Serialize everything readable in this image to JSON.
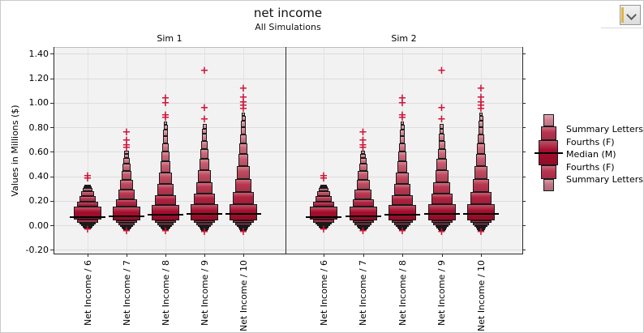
{
  "header": {
    "title": "net income",
    "subtitle": "All Simulations"
  },
  "controls": {
    "menu_button_icon": "chevron-down"
  },
  "chart_data": {
    "type": "letter-value-boxplot",
    "title": "net income",
    "subtitle": "All Simulations",
    "ylabel": "Values in Millions ($)",
    "ylim": [
      -0.2,
      1.4
    ],
    "ytick_step": 0.2,
    "ytick_labels": [
      "-0.20",
      "0.00",
      "0.20",
      "0.40",
      "0.60",
      "0.80",
      "1.00",
      "1.20",
      "1.40"
    ],
    "grid": true,
    "legend_position": "right",
    "legend_items": [
      "Summary Letters",
      "Fourths (F)",
      "Median (M)",
      "Fourths (F)",
      "Summary Letters"
    ],
    "colors": {
      "box_deep": "#a50e2d",
      "box_light": "#dca0ab",
      "outlier": "#d21438",
      "panel_bg": "#f2f2f2"
    },
    "panels": [
      {
        "label": "Sim 1",
        "columns": [
          {
            "label": "Net Income / 6",
            "median": 0.065,
            "fourths": [
              0.046,
              0.152
            ],
            "upper_letter_values": [
              0.19,
              0.24,
              0.28,
              0.303,
              0.318,
              0.33
            ],
            "lower_letter_values": [
              0.02,
              0.004,
              -0.007,
              -0.015,
              -0.021,
              -0.026
            ],
            "outliers_high": [
              0.375,
              0.395
            ],
            "outliers_low": [
              -0.042
            ]
          },
          {
            "label": "Net Income / 7",
            "median": 0.075,
            "fourths": [
              0.04,
              0.15
            ],
            "upper_letter_values": [
              0.21,
              0.29,
              0.37,
              0.44,
              0.5,
              0.55,
              0.585,
              0.61
            ],
            "lower_letter_values": [
              0.018,
              0.002,
              -0.01,
              -0.019,
              -0.027,
              -0.033
            ],
            "outliers_high": [
              0.625,
              0.65,
              0.69,
              0.755
            ],
            "outliers_low": [
              -0.05
            ]
          },
          {
            "label": "Net Income / 8",
            "median": 0.085,
            "fourths": [
              0.042,
              0.165
            ],
            "upper_letter_values": [
              0.245,
              0.335,
              0.43,
              0.52,
              0.6,
              0.67,
              0.73,
              0.78,
              0.818,
              0.845
            ],
            "lower_letter_values": [
              0.018,
              0.001,
              -0.012,
              -0.022,
              -0.031,
              -0.038
            ],
            "outliers_high": [
              0.87,
              0.895,
              0.99,
              1.03
            ],
            "outliers_low": [
              -0.055
            ]
          },
          {
            "label": "Net Income / 9",
            "median": 0.09,
            "fourths": [
              0.042,
              0.17
            ],
            "upper_letter_values": [
              0.255,
              0.35,
              0.45,
              0.54,
              0.62,
              0.69,
              0.745,
              0.79,
              0.825
            ],
            "lower_letter_values": [
              0.018,
              0.0,
              -0.013,
              -0.024,
              -0.034,
              -0.042
            ],
            "outliers_high": [
              0.862,
              0.955,
              1.258
            ],
            "outliers_low": [
              -0.058
            ]
          },
          {
            "label": "Net Income / 10",
            "median": 0.095,
            "fourths": [
              0.042,
              0.175
            ],
            "upper_letter_values": [
              0.27,
              0.375,
              0.48,
              0.58,
              0.665,
              0.74,
              0.8,
              0.85,
              0.89,
              0.92
            ],
            "lower_letter_values": [
              0.018,
              0.0,
              -0.014,
              -0.026,
              -0.036,
              -0.044
            ],
            "outliers_high": [
              0.945,
              0.975,
              1.0,
              1.04,
              1.11
            ],
            "outliers_low": [
              -0.06
            ]
          }
        ]
      },
      {
        "label": "Sim 2",
        "columns": [
          {
            "label": "Net Income / 6",
            "median": 0.065,
            "fourths": [
              0.046,
              0.152
            ],
            "upper_letter_values": [
              0.19,
              0.24,
              0.28,
              0.303,
              0.318,
              0.33
            ],
            "lower_letter_values": [
              0.02,
              0.004,
              -0.007,
              -0.015,
              -0.021,
              -0.026
            ],
            "outliers_high": [
              0.375,
              0.395
            ],
            "outliers_low": [
              -0.042
            ]
          },
          {
            "label": "Net Income / 7",
            "median": 0.075,
            "fourths": [
              0.04,
              0.15
            ],
            "upper_letter_values": [
              0.21,
              0.29,
              0.37,
              0.44,
              0.5,
              0.55,
              0.585,
              0.61
            ],
            "lower_letter_values": [
              0.018,
              0.002,
              -0.01,
              -0.019,
              -0.027,
              -0.033
            ],
            "outliers_high": [
              0.625,
              0.65,
              0.69,
              0.755
            ],
            "outliers_low": [
              -0.05
            ]
          },
          {
            "label": "Net Income / 8",
            "median": 0.085,
            "fourths": [
              0.042,
              0.165
            ],
            "upper_letter_values": [
              0.245,
              0.335,
              0.43,
              0.52,
              0.6,
              0.67,
              0.73,
              0.78,
              0.818,
              0.845
            ],
            "lower_letter_values": [
              0.018,
              0.001,
              -0.012,
              -0.022,
              -0.031,
              -0.038
            ],
            "outliers_high": [
              0.87,
              0.895,
              0.99,
              1.03
            ],
            "outliers_low": [
              -0.055
            ]
          },
          {
            "label": "Net Income / 9",
            "median": 0.09,
            "fourths": [
              0.042,
              0.17
            ],
            "upper_letter_values": [
              0.255,
              0.35,
              0.45,
              0.54,
              0.62,
              0.69,
              0.745,
              0.79,
              0.825
            ],
            "lower_letter_values": [
              0.018,
              0.0,
              -0.013,
              -0.024,
              -0.034,
              -0.042
            ],
            "outliers_high": [
              0.862,
              0.955,
              1.258
            ],
            "outliers_low": [
              -0.058
            ]
          },
          {
            "label": "Net Income / 10",
            "median": 0.095,
            "fourths": [
              0.042,
              0.175
            ],
            "upper_letter_values": [
              0.27,
              0.375,
              0.48,
              0.58,
              0.665,
              0.74,
              0.8,
              0.85,
              0.89,
              0.92
            ],
            "lower_letter_values": [
              0.018,
              0.0,
              -0.014,
              -0.026,
              -0.036,
              -0.044
            ],
            "outliers_high": [
              0.945,
              0.975,
              1.0,
              1.04,
              1.11
            ],
            "outliers_low": [
              -0.06
            ]
          }
        ]
      }
    ]
  }
}
